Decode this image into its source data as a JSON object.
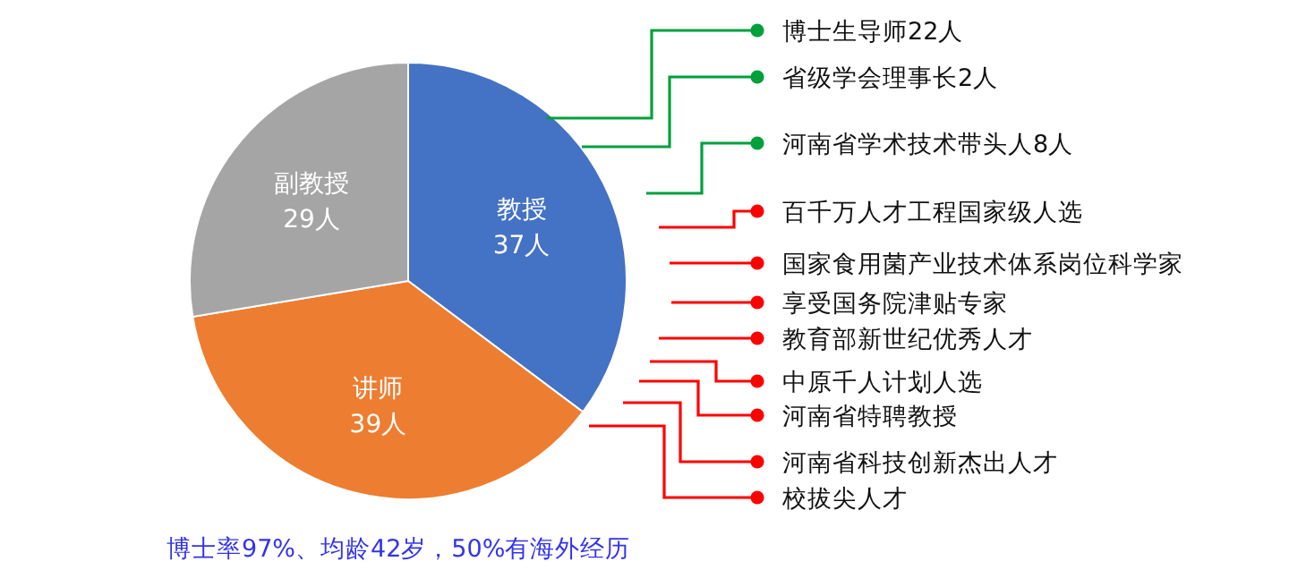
{
  "chart_data": {
    "type": "pie",
    "categories": [
      "教授",
      "讲师",
      "副教授"
    ],
    "values": [
      37,
      39,
      29
    ],
    "value_labels": [
      "37人",
      "39人",
      "29人"
    ],
    "colors": [
      "#4472c4",
      "#ed7d31",
      "#a5a5a5"
    ],
    "annotations": [
      "博士生导师22人",
      "省级学会理事长2人",
      "河南省学术技术带头人8人",
      "百千万人才工程国家级人选",
      "国家食用菌产业技术体系岗位科学家",
      "享受国务院津贴专家",
      "教育部新世纪优秀人才",
      "中原千人计划人选",
      "河南省特聘教授",
      "河南省科技创新杰出人才",
      "校拔尖人才",
      "博士率97%、均龄42岁，50%有海外经历"
    ]
  }
}
